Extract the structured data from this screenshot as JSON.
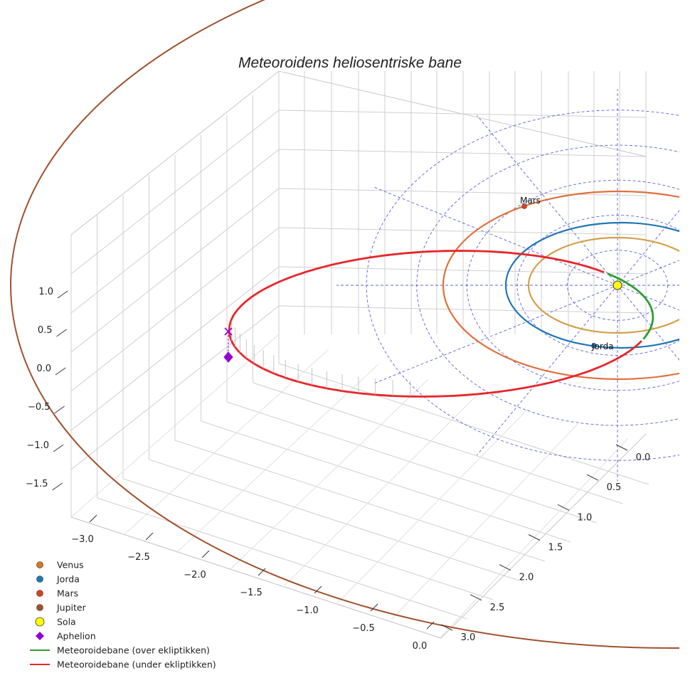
{
  "chart_data": {
    "type": "line",
    "title": "Meteoroidens heliosentriske bane",
    "projection": "3d",
    "axes": {
      "x": {
        "ticks": [
          -3.0,
          -2.5,
          -2.0,
          -1.5,
          -1.0,
          -0.5,
          0.0
        ],
        "tick_labels": [
          "−3.0",
          "−2.5",
          "−2.0",
          "−1.5",
          "−1.0",
          "−0.5",
          "0.0"
        ],
        "range": [
          -3.2,
          0.1
        ]
      },
      "y": {
        "ticks": [
          0.0,
          0.5,
          1.0,
          1.5,
          2.0,
          2.5,
          3.0
        ],
        "tick_labels": [
          "0.0",
          "0.5",
          "1.0",
          "1.5",
          "2.0",
          "2.5",
          "3.0"
        ],
        "range": [
          -0.1,
          3.2
        ]
      },
      "z": {
        "ticks": [
          -1.5,
          -1.0,
          -0.5,
          0.0,
          0.5,
          1.0
        ],
        "tick_labels": [
          "−1.5",
          "−1.0",
          "−0.5",
          "0.0",
          "0.5",
          "1.0"
        ],
        "range": [
          -1.8,
          1.3
        ]
      },
      "grid": true
    },
    "sun": {
      "name": "Sola",
      "position": [
        0,
        0,
        0
      ],
      "color": "#ffff00"
    },
    "planets": [
      {
        "name": "Venus",
        "semi_major_axis_au": 0.72,
        "color": "#d4a04c",
        "labeled": false
      },
      {
        "name": "Jorda",
        "semi_major_axis_au": 1.0,
        "color": "#1f77b4",
        "labeled": true,
        "label": "Jorda"
      },
      {
        "name": "Mars",
        "semi_major_axis_au": 1.52,
        "color": "#e0703c",
        "labeled": true,
        "label": "Mars"
      },
      {
        "name": "Jupiter",
        "semi_major_axis_au": 5.2,
        "color": "#a0522d",
        "labeled": false
      }
    ],
    "reference_grid": {
      "rings_au": [
        1,
        2,
        3,
        4,
        5
      ],
      "spokes_deg": [
        0,
        30,
        60,
        90,
        120,
        150,
        180,
        210,
        240,
        270,
        300,
        330
      ],
      "color": "#4444dd"
    },
    "meteoroid_orbit": {
      "perihelion_au": 0.96,
      "aphelion_au": 3.03,
      "aphelion_z_au": -0.42,
      "segments": [
        {
          "name": "Meteoroidebane (over ekliptikken)",
          "color": "#2ca02c"
        },
        {
          "name": "Meteoroidebane (under ekliptikken)",
          "color": "#e8262a"
        }
      ]
    },
    "aphelion": {
      "name": "Aphelion",
      "color": "#9400d3"
    },
    "legend": {
      "placement": "lower-left",
      "entries": [
        {
          "label": "Venus",
          "marker": "circle",
          "color": "#d4781c"
        },
        {
          "label": "Jorda",
          "marker": "circle",
          "color": "#1f77b4"
        },
        {
          "label": "Mars",
          "marker": "circle",
          "color": "#d2451e"
        },
        {
          "label": "Jupiter",
          "marker": "circle",
          "color": "#a0522d"
        },
        {
          "label": "Sola",
          "marker": "circle-large",
          "color": "#ffff00"
        },
        {
          "label": "Aphelion",
          "marker": "diamond",
          "color": "#9400d3"
        },
        {
          "label": "Meteoroidebane (over ekliptikken)",
          "marker": "line",
          "color": "#2ca02c"
        },
        {
          "label": "Meteoroidebane (under ekliptikken)",
          "marker": "line",
          "color": "#e8262a"
        }
      ]
    }
  }
}
